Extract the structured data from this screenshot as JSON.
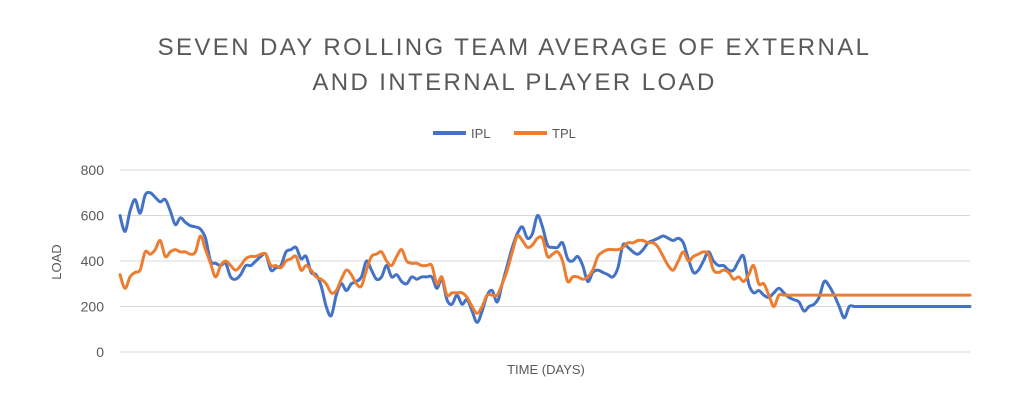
{
  "chart_data": {
    "type": "line",
    "title_line1": "SEVEN DAY ROLLING TEAM AVERAGE OF EXTERNAL",
    "title_line2": "AND INTERNAL PLAYER LOAD",
    "xlabel": "TIME (DAYS)",
    "ylabel": "LOAD",
    "ylim": [
      0,
      800
    ],
    "yticks": [
      "0",
      "200",
      "400",
      "600",
      "800"
    ],
    "grid": true,
    "legend_position": "top",
    "x": [
      1,
      2,
      3,
      4,
      5,
      6,
      7,
      8,
      9,
      10,
      11,
      12,
      13,
      14,
      15,
      16,
      17,
      18,
      19,
      20,
      21,
      22,
      23,
      24,
      25,
      26,
      27,
      28,
      29,
      30,
      31,
      32,
      33,
      34,
      35,
      36,
      37,
      38,
      39,
      40,
      41,
      42,
      43,
      44,
      45,
      46,
      47,
      48,
      49,
      50,
      51,
      52,
      53,
      54,
      55,
      56,
      57,
      58,
      59,
      60,
      61,
      62,
      63,
      64,
      65,
      66,
      67,
      68,
      69,
      70,
      71,
      72,
      73,
      74,
      75,
      76,
      77,
      78,
      79,
      80,
      81,
      82,
      83,
      84,
      85,
      86,
      87,
      88,
      89,
      90,
      91,
      92,
      93,
      94,
      95,
      96,
      97,
      98,
      99,
      100,
      101,
      102,
      103,
      104,
      105,
      106,
      107,
      108,
      109,
      110,
      111,
      112,
      113,
      114,
      115,
      116,
      117,
      118,
      119,
      120,
      121,
      122,
      123,
      124,
      125,
      126,
      127,
      128,
      129,
      130,
      131,
      132,
      133,
      134,
      135,
      136,
      137,
      138,
      139,
      140,
      141,
      142,
      143,
      144,
      145,
      146,
      147,
      148,
      149,
      150,
      151,
      152,
      153,
      154,
      155,
      156,
      157,
      158,
      159,
      160,
      161,
      162,
      163,
      164,
      165,
      166,
      167,
      168,
      169,
      170
    ],
    "series": [
      {
        "name": "IPL",
        "color": "#4472C4",
        "values": [
          600,
          530,
          620,
          670,
          610,
          690,
          700,
          680,
          660,
          670,
          620,
          560,
          590,
          570,
          555,
          550,
          540,
          500,
          400,
          390,
          380,
          390,
          330,
          320,
          340,
          380,
          380,
          400,
          420,
          430,
          360,
          370,
          380,
          440,
          450,
          460,
          410,
          420,
          350,
          340,
          290,
          200,
          160,
          250,
          300,
          270,
          300,
          310,
          330,
          400,
          360,
          320,
          330,
          380,
          330,
          340,
          310,
          300,
          330,
          320,
          330,
          330,
          330,
          280,
          320,
          230,
          210,
          250,
          210,
          230,
          180,
          130,
          180,
          250,
          270,
          220,
          300,
          380,
          460,
          520,
          550,
          500,
          520,
          600,
          550,
          470,
          460,
          460,
          480,
          410,
          400,
          420,
          380,
          310,
          350,
          360,
          350,
          340,
          330,
          370,
          470,
          460,
          440,
          430,
          450,
          480,
          490,
          500,
          510,
          500,
          490,
          500,
          480,
          410,
          350,
          360,
          400,
          440,
          400,
          380,
          380,
          360,
          360,
          400,
          420,
          300,
          260,
          270,
          250,
          240,
          260,
          280,
          260,
          240,
          230,
          220,
          180,
          200,
          210,
          240,
          310,
          290,
          250,
          200,
          150,
          200,
          200,
          200,
          200,
          200,
          200,
          200,
          200,
          200,
          200,
          200,
          200,
          200,
          200,
          200,
          200,
          200,
          200,
          200,
          200,
          200,
          200,
          200,
          200,
          200
        ]
      },
      {
        "name": "TPL",
        "color": "#ED7D31",
        "values": [
          340,
          280,
          330,
          350,
          360,
          440,
          430,
          450,
          490,
          420,
          440,
          450,
          440,
          440,
          430,
          440,
          510,
          450,
          390,
          330,
          380,
          400,
          380,
          360,
          380,
          410,
          420,
          420,
          430,
          430,
          380,
          380,
          370,
          400,
          410,
          420,
          360,
          380,
          360,
          330,
          320,
          300,
          260,
          270,
          320,
          360,
          340,
          300,
          290,
          360,
          420,
          430,
          440,
          400,
          380,
          420,
          450,
          400,
          390,
          390,
          380,
          380,
          380,
          300,
          330,
          250,
          260,
          260,
          260,
          240,
          200,
          170,
          200,
          250,
          250,
          250,
          300,
          360,
          440,
          510,
          490,
          460,
          470,
          500,
          500,
          420,
          430,
          440,
          400,
          310,
          330,
          330,
          320,
          330,
          360,
          420,
          440,
          450,
          450,
          450,
          460,
          480,
          480,
          490,
          490,
          480,
          480,
          460,
          420,
          380,
          360,
          400,
          440,
          400,
          420,
          430,
          440,
          430,
          360,
          350,
          360,
          350,
          320,
          330,
          310,
          340,
          380,
          300,
          300,
          250,
          200,
          250,
          250,
          250,
          250,
          250,
          250,
          250,
          250,
          250,
          250,
          250,
          250,
          250,
          250,
          250,
          250,
          250,
          250,
          250,
          250,
          250,
          250,
          250,
          250,
          250,
          250,
          250,
          250,
          250,
          250,
          250,
          250,
          250,
          250,
          250,
          250,
          250,
          250,
          250
        ]
      }
    ]
  }
}
